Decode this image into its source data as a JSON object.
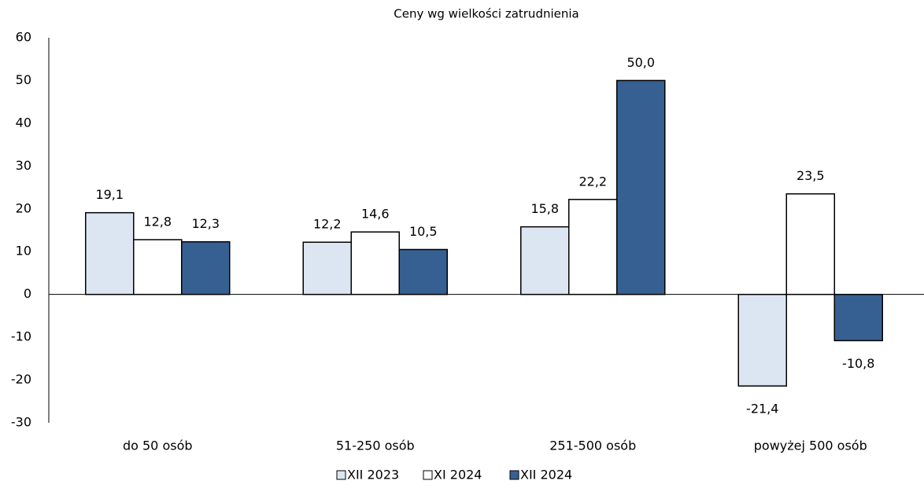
{
  "chart_data": {
    "type": "bar",
    "title": "Ceny wg wielkości zatrudnienia",
    "categories": [
      "do 50 osób",
      "51-250 osób",
      "251-500 osób",
      "powyżej 500 osób"
    ],
    "series": [
      {
        "name": "XII 2023",
        "color": "#dce6f2",
        "values": [
          19.1,
          12.2,
          15.8,
          -21.4
        ],
        "value_labels": [
          "19,1",
          "12,2",
          "15,8",
          "-21,4"
        ]
      },
      {
        "name": "XI 2024",
        "color": "#ffffff",
        "values": [
          12.8,
          14.6,
          22.2,
          23.5
        ],
        "value_labels": [
          "12,8",
          "14,6",
          "22,2",
          "23,5"
        ]
      },
      {
        "name": "XII 2024",
        "color": "#376092",
        "values": [
          12.3,
          10.5,
          50.0,
          -10.8
        ],
        "value_labels": [
          "12,3",
          "10,5",
          "50,0",
          "-10,8"
        ]
      }
    ],
    "ylim": [
      -30,
      60
    ],
    "yticks": [
      -30,
      -20,
      -10,
      0,
      10,
      20,
      30,
      40,
      50,
      60
    ],
    "grid": false,
    "legend": "bottom"
  }
}
